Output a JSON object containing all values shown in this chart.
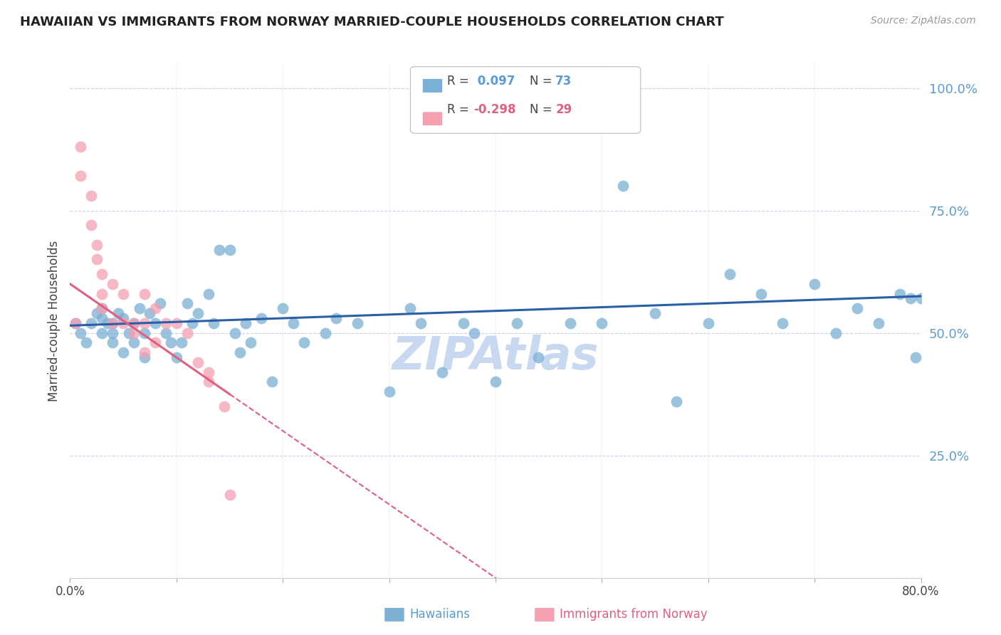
{
  "title": "HAWAIIAN VS IMMIGRANTS FROM NORWAY MARRIED-COUPLE HOUSEHOLDS CORRELATION CHART",
  "source": "Source: ZipAtlas.com",
  "ylabel": "Married-couple Households",
  "ytick_labels": [
    "100.0%",
    "75.0%",
    "50.0%",
    "25.0%"
  ],
  "ytick_values": [
    1.0,
    0.75,
    0.5,
    0.25
  ],
  "xmin": 0.0,
  "xmax": 0.8,
  "ymin": 0.0,
  "ymax": 1.05,
  "r_hawaiian": 0.097,
  "n_hawaiian": 73,
  "r_norway": -0.298,
  "n_norway": 29,
  "color_hawaiian": "#7bafd4",
  "color_norway": "#f4a0b0",
  "line_color_hawaiian": "#2a5fa8",
  "line_color_norway": "#e06080",
  "background_color": "#ffffff",
  "grid_color": "#c8d4e8",
  "watermark_color": "#c8d8f0",
  "hawaiian_x": [
    0.005,
    0.01,
    0.015,
    0.02,
    0.025,
    0.03,
    0.03,
    0.03,
    0.035,
    0.04,
    0.04,
    0.04,
    0.045,
    0.05,
    0.05,
    0.055,
    0.06,
    0.06,
    0.065,
    0.07,
    0.07,
    0.075,
    0.08,
    0.085,
    0.09,
    0.095,
    0.1,
    0.105,
    0.11,
    0.115,
    0.12,
    0.13,
    0.135,
    0.14,
    0.15,
    0.155,
    0.16,
    0.165,
    0.17,
    0.18,
    0.19,
    0.2,
    0.21,
    0.22,
    0.24,
    0.25,
    0.27,
    0.3,
    0.32,
    0.33,
    0.35,
    0.37,
    0.38,
    0.4,
    0.42,
    0.44,
    0.47,
    0.5,
    0.52,
    0.55,
    0.57,
    0.6,
    0.62,
    0.65,
    0.67,
    0.7,
    0.72,
    0.74,
    0.76,
    0.78,
    0.79,
    0.795,
    0.8
  ],
  "hawaiian_y": [
    0.52,
    0.5,
    0.48,
    0.52,
    0.54,
    0.5,
    0.53,
    0.55,
    0.52,
    0.48,
    0.5,
    0.52,
    0.54,
    0.46,
    0.53,
    0.5,
    0.48,
    0.52,
    0.55,
    0.45,
    0.5,
    0.54,
    0.52,
    0.56,
    0.5,
    0.48,
    0.45,
    0.48,
    0.56,
    0.52,
    0.54,
    0.58,
    0.52,
    0.67,
    0.67,
    0.5,
    0.46,
    0.52,
    0.48,
    0.53,
    0.4,
    0.55,
    0.52,
    0.48,
    0.5,
    0.53,
    0.52,
    0.38,
    0.55,
    0.52,
    0.42,
    0.52,
    0.5,
    0.4,
    0.52,
    0.45,
    0.52,
    0.52,
    0.8,
    0.54,
    0.36,
    0.52,
    0.62,
    0.58,
    0.52,
    0.6,
    0.5,
    0.55,
    0.52,
    0.58,
    0.57,
    0.45,
    0.57
  ],
  "norway_x": [
    0.005,
    0.01,
    0.01,
    0.02,
    0.02,
    0.025,
    0.025,
    0.03,
    0.03,
    0.03,
    0.04,
    0.04,
    0.05,
    0.05,
    0.06,
    0.06,
    0.07,
    0.07,
    0.07,
    0.08,
    0.08,
    0.09,
    0.1,
    0.11,
    0.12,
    0.13,
    0.13,
    0.145,
    0.15
  ],
  "norway_y": [
    0.52,
    0.88,
    0.82,
    0.72,
    0.78,
    0.65,
    0.68,
    0.62,
    0.55,
    0.58,
    0.6,
    0.52,
    0.58,
    0.52,
    0.52,
    0.5,
    0.58,
    0.52,
    0.46,
    0.55,
    0.48,
    0.52,
    0.52,
    0.5,
    0.44,
    0.42,
    0.4,
    0.35,
    0.17
  ]
}
